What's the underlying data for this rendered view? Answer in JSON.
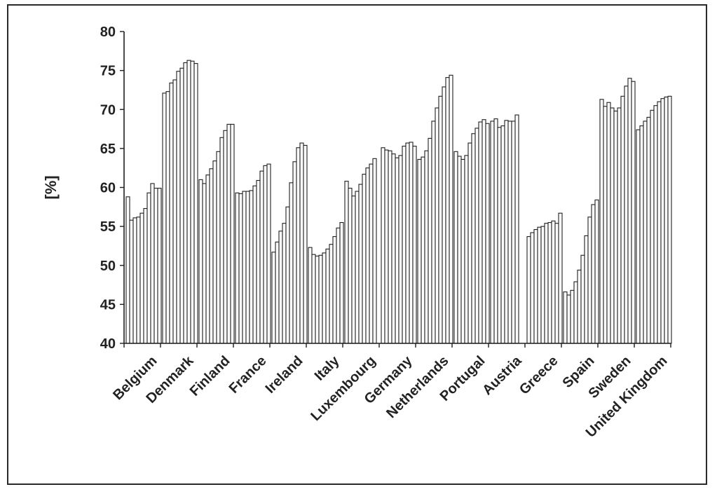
{
  "chart_data": {
    "type": "bar",
    "title": "",
    "xlabel": "",
    "ylabel": "[%]",
    "ylim": [
      40,
      80
    ],
    "yticks": [
      40,
      45,
      50,
      55,
      60,
      65,
      70,
      75,
      80
    ],
    "grid": false,
    "legend": "none",
    "bar_fill": "#ffffff",
    "bar_stroke": "#1e1e1e",
    "categories": [
      "Belgium",
      "Denmark",
      "Finland",
      "France",
      "Ireland",
      "Italy",
      "Luxembourg",
      "Germany",
      "Netherlands",
      "Portugal",
      "Austria",
      "Greece",
      "Spain",
      "Sweden",
      "United Kingdom"
    ],
    "series": [
      {
        "values": [
          [
            58.8,
            55.8,
            56.1,
            56.2,
            56.7,
            57.3,
            59.3,
            60.5,
            59.9,
            59.9
          ],
          [
            72.1,
            72.3,
            73.4,
            73.8,
            74.9,
            75.3,
            76.0,
            76.3,
            76.2,
            75.9
          ],
          [
            61.0,
            60.5,
            61.6,
            62.4,
            63.4,
            64.6,
            66.4,
            67.3,
            68.1,
            68.1
          ],
          [
            59.3,
            59.2,
            59.5,
            59.5,
            59.6,
            60.2,
            60.9,
            62.1,
            62.8,
            63.0
          ],
          [
            51.7,
            53.0,
            54.4,
            55.4,
            57.5,
            60.6,
            63.3,
            65.1,
            65.7,
            65.4
          ],
          [
            52.3,
            51.4,
            51.2,
            51.3,
            51.6,
            52.1,
            52.7,
            53.7,
            54.8,
            55.5
          ],
          [
            60.8,
            59.9,
            58.9,
            59.5,
            60.4,
            61.7,
            62.5,
            63.0,
            63.7
          ],
          [
            65.1,
            64.8,
            64.7,
            64.3,
            63.8,
            64.1,
            65.3,
            65.7,
            65.8,
            65.3
          ],
          [
            63.6,
            63.9,
            64.7,
            66.3,
            68.5,
            70.2,
            71.7,
            72.9,
            74.1,
            74.4
          ],
          [
            64.6,
            64.0,
            63.6,
            64.1,
            65.7,
            66.9,
            67.6,
            68.4,
            68.7,
            68.2
          ],
          [
            68.5,
            68.8,
            67.7,
            67.9,
            68.6,
            68.5,
            68.5,
            69.3
          ],
          [
            53.7,
            54.2,
            54.6,
            54.9,
            55.0,
            55.4,
            55.5,
            55.7,
            55.4,
            56.7
          ],
          [
            46.6,
            46.2,
            46.8,
            47.9,
            49.4,
            51.3,
            53.8,
            56.2,
            57.8,
            58.4
          ],
          [
            71.3,
            70.4,
            70.9,
            70.2,
            69.8,
            70.2,
            71.7,
            73.0,
            74.0,
            73.6
          ],
          [
            67.4,
            67.9,
            68.5,
            69.0,
            69.9,
            70.5,
            71.0,
            71.4,
            71.6,
            71.7
          ]
        ]
      }
    ]
  }
}
